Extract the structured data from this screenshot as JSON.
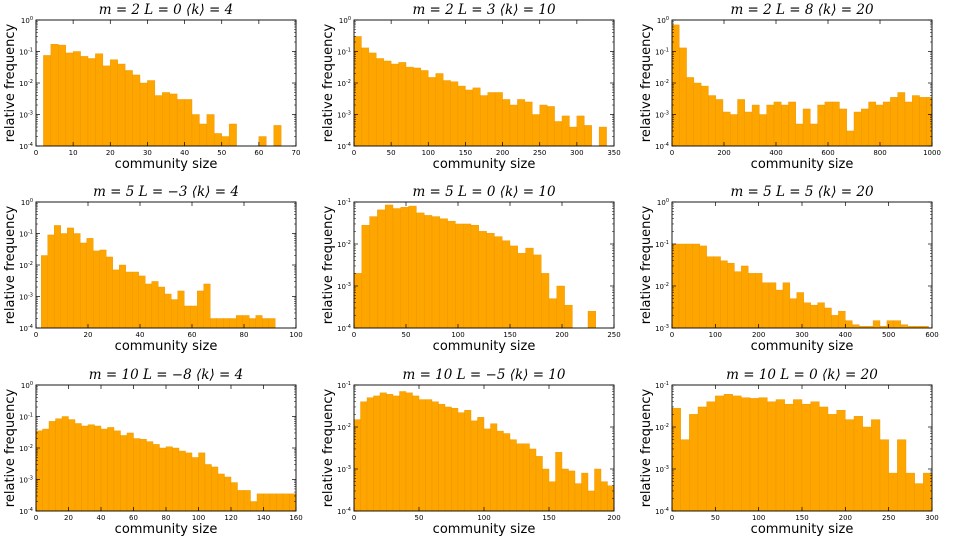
{
  "chart_data": [
    {
      "type": "bar",
      "title": "m = 2    L = 0    ⟨k⟩ = 4",
      "xlabel": "community size",
      "ylabel": "relative frequency",
      "yscale": "log",
      "xlim": [
        0,
        70
      ],
      "ylim_exp": [
        -4,
        0
      ],
      "xticks": [
        0,
        10,
        20,
        30,
        40,
        50,
        60,
        70
      ],
      "bin_start": 2,
      "bin_width": 2,
      "values": [
        0.075,
        0.17,
        0.16,
        0.09,
        0.1,
        0.07,
        0.06,
        0.085,
        0.035,
        0.055,
        0.04,
        0.025,
        0.018,
        0.01,
        0.012,
        0.004,
        0.005,
        0.0045,
        0.003,
        0.003,
        0.001,
        0.0005,
        0.001,
        0.00025,
        0.0002,
        0.0005,
        0.0001,
        0.0001,
        0.0001,
        0.0002,
        0,
        0.00045,
        0
      ]
    },
    {
      "type": "bar",
      "title": "m = 2    L = 3    ⟨k⟩ = 10",
      "xlabel": "community size",
      "ylabel": "relative frequency",
      "yscale": "log",
      "xlim": [
        0,
        350
      ],
      "ylim_exp": [
        -4,
        0
      ],
      "xticks": [
        0,
        50,
        100,
        150,
        200,
        250,
        300,
        350
      ],
      "bin_start": 0,
      "bin_width": 10,
      "values": [
        0.3,
        0.13,
        0.09,
        0.06,
        0.05,
        0.04,
        0.045,
        0.032,
        0.03,
        0.025,
        0.015,
        0.02,
        0.012,
        0.011,
        0.008,
        0.006,
        0.007,
        0.004,
        0.005,
        0.005,
        0.003,
        0.002,
        0.003,
        0.0025,
        0.001,
        0.002,
        0.0018,
        0.0006,
        0.0009,
        0.0004,
        0.0009,
        0.00045,
        0.0001,
        0.0004
      ]
    },
    {
      "type": "bar",
      "title": "m = 2    L = 8    ⟨k⟩ = 20",
      "xlabel": "community size",
      "ylabel": "relative frequency",
      "yscale": "log",
      "xlim": [
        0,
        1000
      ],
      "ylim_exp": [
        -4,
        0
      ],
      "xticks": [
        0,
        200,
        400,
        600,
        800,
        1000
      ],
      "bin_start": 0,
      "bin_width": 28,
      "values": [
        0.7,
        0.13,
        0.015,
        0.01,
        0.008,
        0.004,
        0.003,
        0.0012,
        0.001,
        0.003,
        0.0012,
        0.002,
        0.001,
        0.002,
        0.0025,
        0.002,
        0.0025,
        0.0005,
        0.0015,
        0.0005,
        0.002,
        0.0025,
        0.0025,
        0.0015,
        0.0003,
        0.0012,
        0.0015,
        0.0025,
        0.002,
        0.0025,
        0.0035,
        0.005,
        0.0025,
        0.004,
        0.0035,
        0.0035,
        0.0008,
        0.0012,
        0.0015,
        0.001,
        0.0008
      ]
    },
    {
      "type": "bar",
      "title": "m = 5    L = −3    ⟨k⟩ = 4",
      "xlabel": "community size",
      "ylabel": "relative frequency",
      "yscale": "log",
      "xlim": [
        0,
        100
      ],
      "ylim_exp": [
        -4,
        0
      ],
      "xticks": [
        0,
        20,
        40,
        60,
        80,
        100
      ],
      "bin_start": 2,
      "bin_width": 2.5,
      "values": [
        0.02,
        0.09,
        0.18,
        0.1,
        0.15,
        0.1,
        0.05,
        0.07,
        0.028,
        0.03,
        0.018,
        0.007,
        0.01,
        0.006,
        0.006,
        0.0045,
        0.0025,
        0.003,
        0.002,
        0.0012,
        0.0008,
        0.0015,
        0.0005,
        0.0005,
        0.0015,
        0.0025,
        0.0002,
        0.0002,
        0.0002,
        0.0002,
        0.00025,
        0.00025,
        0.0002,
        0.00025,
        0.0002,
        0.0002
      ]
    },
    {
      "type": "bar",
      "title": "m = 5    L = 0    ⟨k⟩ = 10",
      "xlabel": "community size",
      "ylabel": "relative frequency",
      "yscale": "log",
      "xlim": [
        0,
        250
      ],
      "ylim_exp": [
        -4,
        -1
      ],
      "xticks": [
        0,
        50,
        100,
        150,
        200,
        250
      ],
      "bin_start": 0,
      "bin_width": 7.5,
      "values": [
        0.002,
        0.028,
        0.045,
        0.065,
        0.085,
        0.07,
        0.075,
        0.08,
        0.055,
        0.048,
        0.045,
        0.04,
        0.035,
        0.03,
        0.03,
        0.028,
        0.02,
        0.018,
        0.015,
        0.012,
        0.009,
        0.006,
        0.008,
        0.0055,
        0.002,
        0.0005,
        0.001,
        0.00035,
        0,
        0,
        0.00025
      ]
    },
    {
      "type": "bar",
      "title": "m = 5    L = 5    ⟨k⟩ = 20",
      "xlabel": "community size",
      "ylabel": "relative frequency",
      "yscale": "log",
      "xlim": [
        0,
        600
      ],
      "ylim_exp": [
        -3,
        0
      ],
      "xticks": [
        0,
        100,
        200,
        300,
        400,
        500,
        600
      ],
      "bin_start": 0,
      "bin_width": 16,
      "values": [
        0.1,
        0.1,
        0.1,
        0.1,
        0.09,
        0.05,
        0.05,
        0.04,
        0.035,
        0.022,
        0.03,
        0.02,
        0.02,
        0.012,
        0.012,
        0.008,
        0.012,
        0.005,
        0.007,
        0.004,
        0.0035,
        0.004,
        0.003,
        0.002,
        0.0025,
        0.0015,
        0.0012,
        0.0011,
        0.0011,
        0.0015,
        0.0011,
        0.0015,
        0.0015,
        0.0012,
        0.0011,
        0.0011,
        0.0011
      ]
    },
    {
      "type": "bar",
      "title": "m = 10    L = −8    ⟨k⟩ = 4",
      "xlabel": "community size",
      "ylabel": "relative frequency",
      "yscale": "log",
      "xlim": [
        0,
        160
      ],
      "ylim_exp": [
        -4,
        0
      ],
      "xticks": [
        0,
        20,
        40,
        60,
        80,
        100,
        120,
        140,
        160
      ],
      "bin_start": 0,
      "bin_width": 4,
      "values": [
        0.035,
        0.04,
        0.07,
        0.085,
        0.1,
        0.08,
        0.06,
        0.05,
        0.055,
        0.05,
        0.04,
        0.045,
        0.035,
        0.025,
        0.03,
        0.02,
        0.019,
        0.016,
        0.013,
        0.01,
        0.011,
        0.01,
        0.008,
        0.007,
        0.005,
        0.007,
        0.003,
        0.0025,
        0.0015,
        0.0012,
        0.0008,
        0.00045,
        0.00045,
        0.0002,
        0.00035,
        0.00035,
        0.00035,
        0.00035,
        0.00035,
        0.00035
      ]
    },
    {
      "type": "bar",
      "title": "m = 10    L = −5    ⟨k⟩ = 10",
      "xlabel": "community size",
      "ylabel": "relative frequency",
      "yscale": "log",
      "xlim": [
        0,
        200
      ],
      "ylim_exp": [
        -4,
        -1
      ],
      "xticks": [
        0,
        50,
        100,
        150,
        200
      ],
      "bin_start": 0,
      "bin_width": 5,
      "values": [
        0.015,
        0.04,
        0.05,
        0.055,
        0.065,
        0.06,
        0.055,
        0.07,
        0.065,
        0.055,
        0.045,
        0.045,
        0.04,
        0.035,
        0.03,
        0.028,
        0.022,
        0.025,
        0.014,
        0.017,
        0.009,
        0.012,
        0.008,
        0.007,
        0.005,
        0.004,
        0.004,
        0.003,
        0.002,
        0.001,
        0.0005,
        0.0025,
        0.001,
        0.0009,
        0.00045,
        0.0008,
        0.0003,
        0.001,
        0.0005,
        0.0004
      ]
    },
    {
      "type": "bar",
      "title": "m = 10    L = 0    ⟨k⟩ = 20",
      "xlabel": "community size",
      "ylabel": "relative frequency",
      "yscale": "log",
      "xlim": [
        0,
        300
      ],
      "ylim_exp": [
        -4,
        -1
      ],
      "xticks": [
        0,
        50,
        100,
        150,
        200,
        250,
        300
      ],
      "bin_start": 0,
      "bin_width": 10,
      "values": [
        0.028,
        0.005,
        0.02,
        0.03,
        0.04,
        0.055,
        0.06,
        0.055,
        0.05,
        0.048,
        0.05,
        0.04,
        0.045,
        0.035,
        0.045,
        0.035,
        0.04,
        0.03,
        0.02,
        0.025,
        0.015,
        0.018,
        0.01,
        0.015,
        0.005,
        0.0008,
        0.005,
        0.0008,
        0.00045,
        0.0008
      ]
    }
  ]
}
